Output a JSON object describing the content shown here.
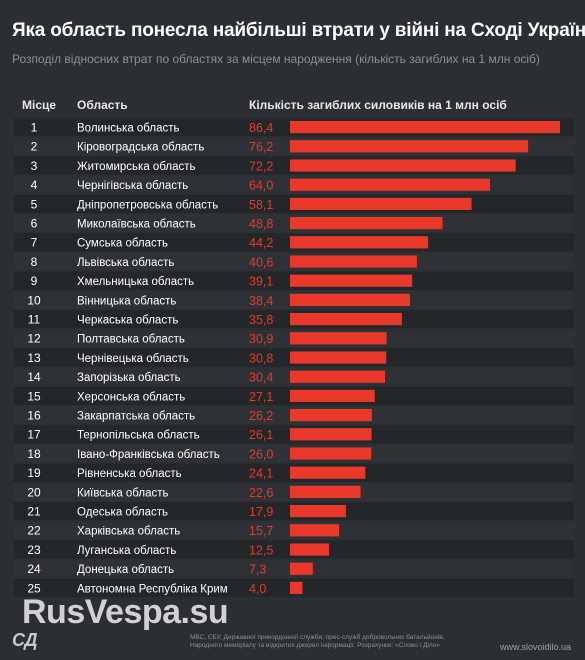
{
  "header": {
    "title": "Яка область понесла найбільші втрати у війні на Сході України",
    "subtitle": "Розподіл відносних втрат по областях за місцем народження (кількість загиблих на 1 млн осіб)"
  },
  "columns": {
    "rank": "Місце",
    "region": "Область",
    "value": "Кількість загиблих силовиків на 1 млн осіб"
  },
  "colors": {
    "bar": "#e8392a",
    "value_text": "#e8392a",
    "row_dark": "#23272a",
    "row_light": "#2e3236"
  },
  "chart_data": {
    "type": "bar",
    "orientation": "horizontal",
    "title": "Яка область понесла найбільші втрати у війні на Сході України",
    "subtitle": "Розподіл відносних втрат по областях за місцем народження (кількість загиблих на 1 млн осіб)",
    "ylabel": "Область",
    "xlabel": "Кількість загиблих силовиків на 1 млн осіб",
    "xlim": [
      0,
      86.4
    ],
    "ranks": [
      1,
      2,
      3,
      4,
      5,
      6,
      7,
      8,
      9,
      10,
      11,
      12,
      13,
      14,
      15,
      16,
      17,
      18,
      19,
      20,
      21,
      22,
      23,
      24,
      25
    ],
    "categories": [
      "Волинська область",
      "Кіровоградська область",
      "Житомирська область",
      "Чернігівська область",
      "Дніпропетровська область",
      "Миколаївська область",
      "Сумська область",
      "Львівська область",
      "Хмельницька область",
      "Вінницька область",
      "Черкаська область",
      "Полтавська область",
      "Чернівецька область",
      "Запорізька область",
      "Херсонська область",
      "Закарпатська область",
      "Тернопільська область",
      "Івано-Франківська область",
      "Рівненська область",
      "Київська область",
      "Одеська область",
      "Харківська область",
      "Луганська область",
      "Донецька область",
      "Автономна Республіка Крим"
    ],
    "values": [
      86.4,
      76.2,
      72.2,
      64.0,
      58.1,
      48.8,
      44.2,
      40.6,
      39.1,
      38.4,
      35.8,
      30.9,
      30.8,
      30.4,
      27.1,
      26.2,
      26.1,
      26.0,
      24.1,
      22.6,
      17.9,
      15.7,
      12.5,
      7.3,
      4.0
    ],
    "value_labels": [
      "86,4",
      "76,2",
      "72,2",
      "64,0",
      "58,1",
      "48,8",
      "44,2",
      "40,6",
      "39,1",
      "38,4",
      "35,8",
      "30,9",
      "30,8",
      "30,4",
      "27,1",
      "26,2",
      "26,1",
      "26,0",
      "24,1",
      "22,6",
      "17,9",
      "15,7",
      "12,5",
      "7,3",
      "4,0"
    ],
    "grid": false,
    "legend": "none"
  },
  "footer": {
    "logo": "СД",
    "sources": "МВС, СБУ, Державної прикордонної служби, прес-служб добровольчих батальйонів, Народного меморіалу та відкритих джерел інформації. Розрахунки: «Слово і Діло»",
    "site": "www.slovoidilo.ua"
  },
  "watermark": {
    "text": "RusVespa.su"
  }
}
